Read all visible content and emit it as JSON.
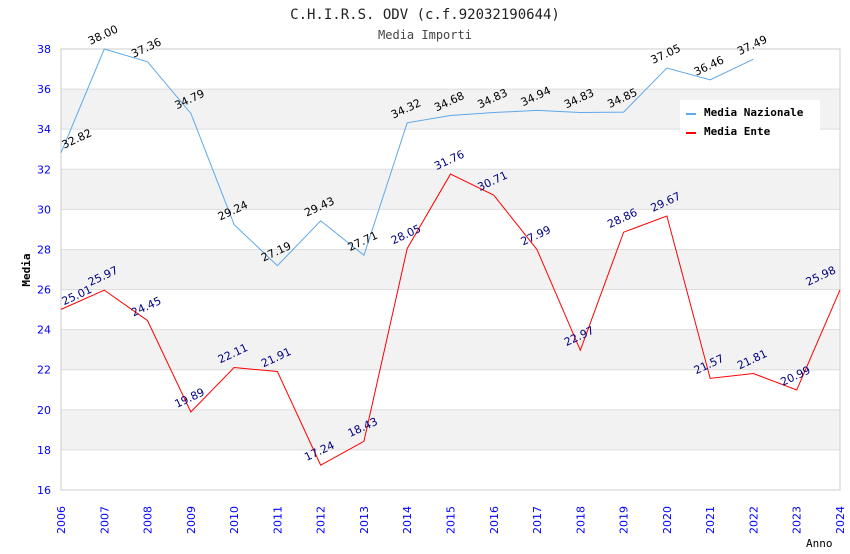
{
  "chart_data": {
    "type": "line",
    "title": "C.H.I.R.S. ODV (c.f.92032190644)",
    "subtitle": "Media Importi",
    "xlabel": "Anno",
    "ylabel": "Media",
    "ylim": [
      16,
      38
    ],
    "yticks": [
      "16",
      "18",
      "20",
      "22",
      "24",
      "26",
      "28",
      "30",
      "32",
      "34",
      "36",
      "38"
    ],
    "x": [
      "2006",
      "2007",
      "2008",
      "2009",
      "2010",
      "2011",
      "2012",
      "2013",
      "2014",
      "2015",
      "2016",
      "2017",
      "2018",
      "2019",
      "2020",
      "2021",
      "2022",
      "2023",
      "2024"
    ],
    "grid": "horizontal bands",
    "legend": "top-right",
    "series": [
      {
        "name": "Media Nazionale",
        "color": "#5ea8ea",
        "label_color": "#000000",
        "values": [
          32.82,
          38.0,
          37.36,
          34.79,
          29.24,
          27.19,
          29.43,
          27.71,
          34.32,
          34.68,
          34.83,
          34.94,
          34.83,
          34.85,
          37.05,
          36.46,
          37.49,
          null,
          null
        ],
        "labels": [
          "32.82",
          "38.00",
          "37.36",
          "34.79",
          "29.24",
          "27.19",
          "29.43",
          "27.71",
          "34.32",
          "34.68",
          "34.83",
          "34.94",
          "34.83",
          "34.85",
          "37.05",
          "36.46",
          "37.49",
          null,
          null
        ]
      },
      {
        "name": "Media Ente",
        "color": "#ff0000",
        "label_color": "#000080",
        "values": [
          25.01,
          25.97,
          24.45,
          19.89,
          22.11,
          21.91,
          17.24,
          18.43,
          28.05,
          31.76,
          30.71,
          27.99,
          22.97,
          28.86,
          29.67,
          21.57,
          21.81,
          20.99,
          25.98
        ],
        "labels": [
          "25.01",
          "25.97",
          "24.45",
          "19.89",
          "22.11",
          "21.91",
          "17.24",
          "18.43",
          "28.05",
          "31.76",
          "30.71",
          "27.99",
          "22.97",
          "28.86",
          "29.67",
          "21.57",
          "21.81",
          "20.99",
          "25.98"
        ]
      }
    ]
  }
}
